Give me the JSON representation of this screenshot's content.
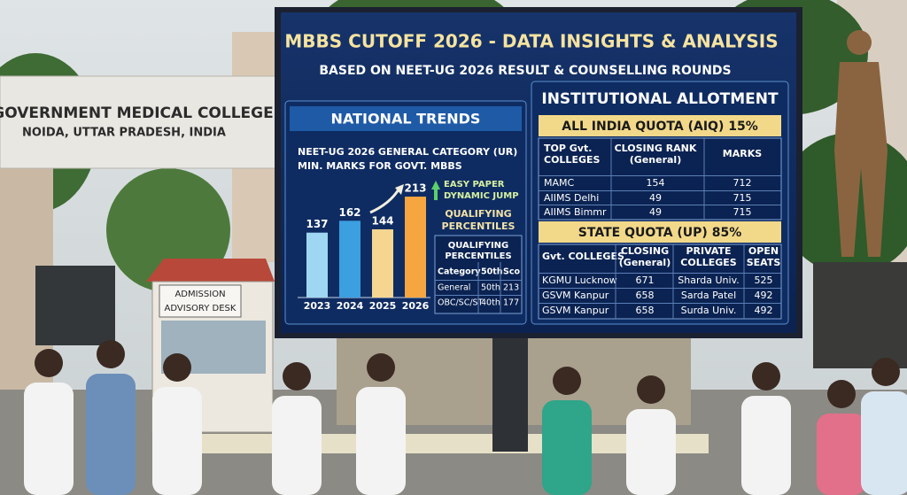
{
  "gate_sign": {
    "title": "GOVERNMENT MEDICAL COLLEGE",
    "location": "NOIDA, UTTAR PRADESH, INDIA"
  },
  "kiosk": {
    "label": [
      "ADMISSION",
      "ADVISORY DESK"
    ]
  },
  "billboard": {
    "title": "MBBS CUTOFF 2026 - DATA INSIGHTS & ANALYSIS",
    "subtitle": "BASED ON NEET-UG 2026 RESULT & COUNSELLING ROUNDS",
    "national_trends": {
      "heading": "NATIONAL TRENDS",
      "chart_title": [
        "NEET-UG 2026 GENERAL CATEGORY (UR)",
        "MIN. MARKS FOR GOVT. MBBS"
      ],
      "years": [
        "2023",
        "2024",
        "2025",
        "2026"
      ],
      "values": [
        137,
        162,
        144,
        213
      ],
      "annotation": [
        "EASY PAPER",
        "DYNAMIC JUMP"
      ],
      "note": [
        "QUALIFYING",
        "PERCENTILES"
      ],
      "table": {
        "title": [
          "QUALIFYING",
          "PERCENTILES"
        ],
        "header": [
          [
            "Category"
          ],
          [
            "50th"
          ],
          [
            "Sco"
          ]
        ],
        "rows": [
          [
            "General",
            "50th",
            "213"
          ],
          [
            "OBC/SC/ST",
            "40th",
            "177"
          ]
        ]
      }
    },
    "institutional_allotment": {
      "heading": "INSTITUTIONAL ALLOTMENT",
      "aiq": {
        "title": "ALL INDIA QUOTA (AIQ) 15%",
        "header": [
          [
            "TOP Gvt.",
            "COLLEGES"
          ],
          [
            "CLOSING RANK",
            "(General)"
          ],
          [
            "MARKS"
          ]
        ],
        "rows": [
          [
            "MAMC",
            "154",
            "712"
          ],
          [
            "AIIMS Delhi",
            "49",
            "715"
          ],
          [
            "AIIMS Bimmr",
            "49",
            "715"
          ]
        ]
      },
      "state_quota": {
        "title": "STATE QUOTA (UP) 85%",
        "header": [
          [
            "Gvt. COLLEGES"
          ],
          [
            "CLOSING",
            "(General)"
          ],
          [
            "PRIVATE",
            "COLLEGES"
          ],
          [
            "OPEN",
            "SEATS"
          ]
        ],
        "rows": [
          [
            "KGMU Lucknow",
            "671",
            "Sharda Univ.",
            "525"
          ],
          [
            "GSVM Kanpur",
            "658",
            "Sarda Patel",
            "492"
          ],
          [
            "GSVM Kanpur",
            "658",
            "Surda Univ.",
            "492"
          ]
        ]
      }
    }
  }
}
